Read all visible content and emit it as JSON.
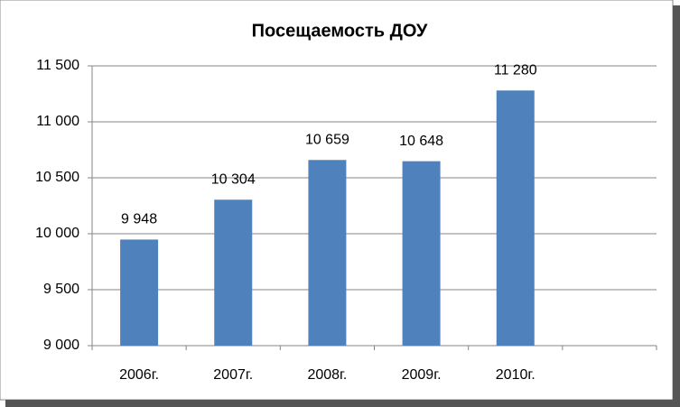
{
  "chart_data": {
    "type": "bar",
    "title": "Посещаемость ДОУ",
    "categories": [
      "2006г.",
      "2007г.",
      "2008г.",
      "2009г.",
      "2010г.",
      null
    ],
    "values": [
      9948,
      10304,
      10659,
      10648,
      11280,
      null
    ],
    "value_labels": [
      "9 948",
      "10 304",
      "10 659",
      "10 648",
      "11 280",
      null
    ],
    "color": "#4f81bd",
    "ylim": [
      9000,
      11500
    ],
    "yticks": [
      {
        "value": 9000,
        "label": "9 000"
      },
      {
        "value": 9500,
        "label": "9 500"
      },
      {
        "value": 10000,
        "label": "10 000"
      },
      {
        "value": 10500,
        "label": "10 500"
      },
      {
        "value": 11000,
        "label": "11 000"
      },
      {
        "value": 11500,
        "label": "11 500"
      }
    ],
    "grid": true
  }
}
